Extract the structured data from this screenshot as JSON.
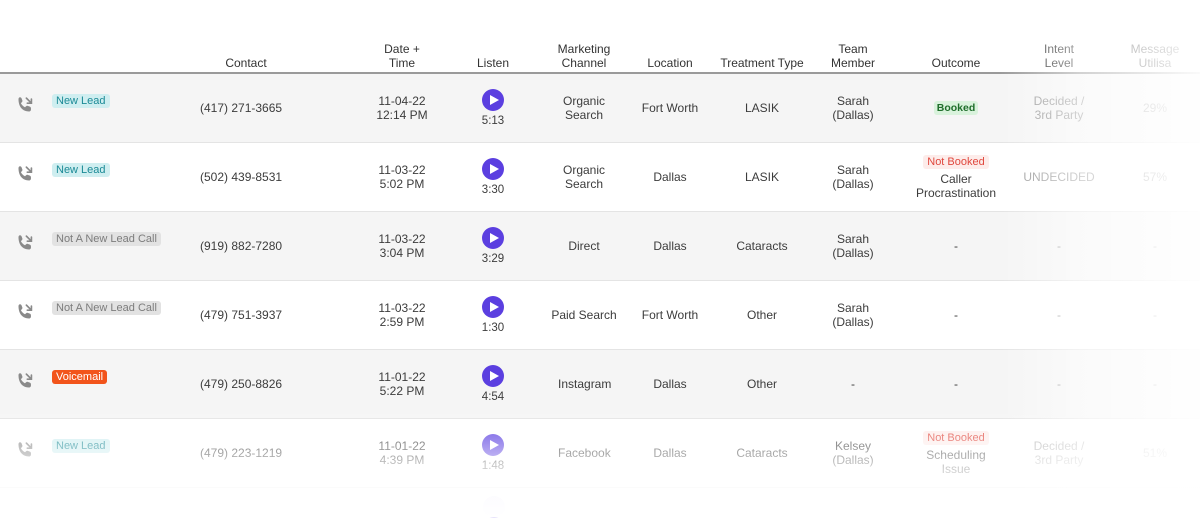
{
  "columns": {
    "contact": "Contact",
    "datetime": "Date + Time",
    "listen": "Listen",
    "marketing": "Marketing Channel",
    "location": "Location",
    "treatment": "Treatment Type",
    "team": "Team Member",
    "outcome": "Outcome",
    "intent": "Intent Level",
    "message": "Message Utilisa"
  },
  "rows": [
    {
      "badge": "New Lead",
      "badge_type": "new",
      "contact": "(417) 271-3665",
      "date": "11-04-22",
      "time": "12:14 PM",
      "duration": "5:13",
      "channel": "Organic Search",
      "location": "Fort Worth",
      "treatment": "LASIK",
      "team": "Sarah (Dallas)",
      "outcome_badge": "Booked",
      "outcome_badge_type": "booked",
      "outcome_text": "",
      "intent": "Decided / 3rd Party",
      "message": "29%"
    },
    {
      "badge": "New Lead",
      "badge_type": "new",
      "contact": "(502) 439-8531",
      "date": "11-03-22",
      "time": "5:02 PM",
      "duration": "3:30",
      "channel": "Organic Search",
      "location": "Dallas",
      "treatment": "LASIK",
      "team": "Sarah (Dallas)",
      "outcome_badge": "Not Booked",
      "outcome_badge_type": "notbooked",
      "outcome_text": "Caller Procrastination",
      "intent": "UNDECIDED",
      "message": "57%"
    },
    {
      "badge": "Not A New Lead Call",
      "badge_type": "notnew",
      "contact": "(919) 882-7280",
      "date": "11-03-22",
      "time": "3:04 PM",
      "duration": "3:29",
      "channel": "Direct",
      "location": "Dallas",
      "treatment": "Cataracts",
      "team": "Sarah (Dallas)",
      "outcome_badge": "",
      "outcome_badge_type": "",
      "outcome_text": "-",
      "intent": "-",
      "message": "-"
    },
    {
      "badge": "Not A New Lead Call",
      "badge_type": "notnew",
      "contact": "(479) 751-3937",
      "date": "11-03-22",
      "time": "2:59 PM",
      "duration": "1:30",
      "channel": "Paid Search",
      "location": "Fort Worth",
      "treatment": "Other",
      "team": "Sarah (Dallas)",
      "outcome_badge": "",
      "outcome_badge_type": "",
      "outcome_text": "-",
      "intent": "-",
      "message": "-"
    },
    {
      "badge": "Voicemail",
      "badge_type": "vm",
      "contact": "(479) 250-8826",
      "date": "11-01-22",
      "time": "5:22 PM",
      "duration": "4:54",
      "channel": "Instagram",
      "location": "Dallas",
      "treatment": "Other",
      "team": "-",
      "outcome_badge": "",
      "outcome_badge_type": "",
      "outcome_text": "-",
      "intent": "-",
      "message": "-"
    },
    {
      "badge": "New Lead",
      "badge_type": "new",
      "contact": "(479) 223-1219",
      "date": "11-01-22",
      "time": "4:39 PM",
      "duration": "1:48",
      "channel": "Facebook",
      "location": "Dallas",
      "treatment": "Cataracts",
      "team": "Kelsey (Dallas)",
      "outcome_badge": "Not Booked",
      "outcome_badge_type": "notbooked",
      "outcome_text": "Scheduling Issue",
      "intent": "Decided / 3rd Party",
      "message": "51%"
    }
  ],
  "icons": {
    "call": "incoming-call-icon",
    "play": "play-icon"
  },
  "colors": {
    "play": "#5b3fe0",
    "new_lead": "#1b8a96",
    "voicemail": "#f2541b",
    "booked": "#1f6e2b",
    "not_booked": "#e0483e"
  }
}
